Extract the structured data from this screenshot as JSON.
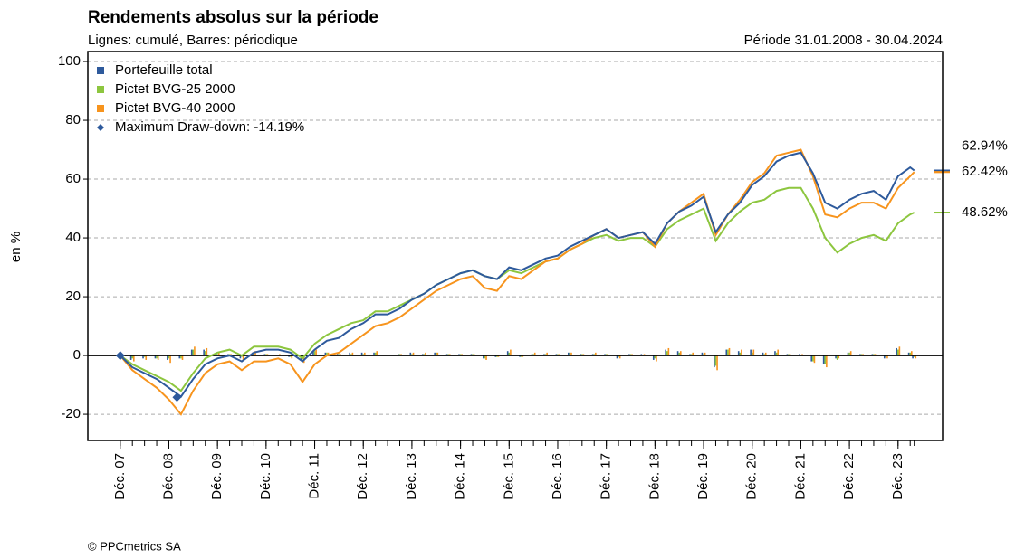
{
  "chart_data": {
    "type": "line",
    "title": "Rendements absolus sur la période",
    "subtitle": "Lignes: cumulé, Barres: périodique",
    "period": "Période 31.01.2008 - 30.04.2024",
    "ylabel": "en %",
    "source": "© PPCmetrics SA",
    "xlim": [
      "2007-04",
      "2024-11"
    ],
    "xticks": [
      {
        "value": "2007-12",
        "label": "Déc. 07"
      },
      {
        "value": "2008-12",
        "label": "Déc. 08"
      },
      {
        "value": "2009-12",
        "label": "Déc. 09"
      },
      {
        "value": "2010-12",
        "label": "Déc. 10"
      },
      {
        "value": "2011-12",
        "label": "Déc. 11"
      },
      {
        "value": "2012-12",
        "label": "Déc. 12"
      },
      {
        "value": "2013-12",
        "label": "Déc. 13"
      },
      {
        "value": "2014-12",
        "label": "Déc. 14"
      },
      {
        "value": "2015-12",
        "label": "Déc. 15"
      },
      {
        "value": "2016-12",
        "label": "Déc. 16"
      },
      {
        "value": "2017-12",
        "label": "Déc. 17"
      },
      {
        "value": "2018-12",
        "label": "Déc. 18"
      },
      {
        "value": "2019-12",
        "label": "Déc. 19"
      },
      {
        "value": "2020-12",
        "label": "Déc. 20"
      },
      {
        "value": "2021-12",
        "label": "Déc. 21"
      },
      {
        "value": "2022-12",
        "label": "Déc. 22"
      },
      {
        "value": "2023-12",
        "label": "Déc. 23"
      }
    ],
    "ylim": [
      -28.9,
      103.4
    ],
    "yticks": [
      -20,
      0,
      20,
      40,
      60,
      80,
      100
    ],
    "grid": true,
    "legend": "upper left",
    "x": [
      "2007-12",
      "2008-03",
      "2008-06",
      "2008-09",
      "2008-12",
      "2009-03",
      "2009-06",
      "2009-09",
      "2009-12",
      "2010-03",
      "2010-06",
      "2010-09",
      "2010-12",
      "2011-03",
      "2011-06",
      "2011-09",
      "2011-12",
      "2012-03",
      "2012-06",
      "2012-09",
      "2012-12",
      "2013-03",
      "2013-06",
      "2013-09",
      "2013-12",
      "2014-03",
      "2014-06",
      "2014-09",
      "2014-12",
      "2015-03",
      "2015-06",
      "2015-09",
      "2015-12",
      "2016-03",
      "2016-06",
      "2016-09",
      "2016-12",
      "2017-03",
      "2017-06",
      "2017-09",
      "2017-12",
      "2018-03",
      "2018-06",
      "2018-09",
      "2018-12",
      "2019-03",
      "2019-06",
      "2019-09",
      "2019-12",
      "2020-03",
      "2020-06",
      "2020-09",
      "2020-12",
      "2021-03",
      "2021-06",
      "2021-09",
      "2021-12",
      "2022-03",
      "2022-06",
      "2022-09",
      "2022-12",
      "2023-03",
      "2023-06",
      "2023-09",
      "2023-12",
      "2024-03",
      "2024-04"
    ],
    "series": [
      {
        "name": "Portefeuille total",
        "color": "#2e5a9c",
        "end_label": "62.94%",
        "values": [
          0,
          -4,
          -6,
          -8,
          -11,
          -14,
          -8,
          -3,
          -1,
          0,
          -2,
          1,
          2,
          2,
          1,
          -2,
          2,
          5,
          6,
          9,
          11,
          14,
          14,
          16,
          19,
          21,
          24,
          26,
          28,
          29,
          27,
          26,
          30,
          29,
          31,
          33,
          34,
          37,
          39,
          41,
          43,
          40,
          41,
          42,
          38,
          45,
          49,
          51,
          54,
          42,
          48,
          52,
          58,
          61,
          66,
          68,
          69,
          62,
          52,
          50,
          53,
          55,
          56,
          53,
          61,
          64,
          62.94
        ],
        "period_values": [
          0,
          -1.5,
          -1,
          -1,
          -1.5,
          -1,
          2,
          2,
          1,
          0.5,
          -1,
          1,
          0.5,
          0,
          -0.5,
          -1.5,
          1.5,
          1,
          0.5,
          1,
          1,
          1,
          0,
          0.5,
          1,
          0.5,
          1,
          0.5,
          0.5,
          0.5,
          -1,
          -0.5,
          1.5,
          -0.5,
          0.5,
          0.5,
          0.5,
          1,
          0.5,
          0.5,
          0.5,
          -1,
          0.5,
          0.5,
          -1.5,
          2,
          1.5,
          0.5,
          1,
          -4,
          2,
          1.5,
          2,
          1,
          1.5,
          0.5,
          0.5,
          -2,
          -3,
          -1,
          1,
          0.5,
          0.5,
          -1,
          2.5,
          1,
          -1
        ]
      },
      {
        "name": "Pictet BVG-25 2000",
        "color": "#8dc63f",
        "end_label": "48.62%",
        "values": [
          0,
          -3,
          -5,
          -7,
          -9,
          -12,
          -6,
          -1,
          1,
          2,
          0,
          3,
          3,
          3,
          2,
          -1,
          4,
          7,
          9,
          11,
          12,
          15,
          15,
          17,
          19,
          21,
          24,
          26,
          28,
          29,
          27,
          26,
          29,
          28,
          30,
          32,
          33,
          36,
          38,
          40,
          41,
          39,
          40,
          40,
          37,
          43,
          46,
          48,
          50,
          39,
          45,
          49,
          52,
          53,
          56,
          57,
          57,
          50,
          40,
          35,
          38,
          40,
          41,
          39,
          45,
          48,
          48.62
        ],
        "period_values": [
          0,
          -1,
          -0.5,
          -1,
          -1,
          -1,
          2,
          1.5,
          0.5,
          0.5,
          -0.5,
          1,
          0.5,
          0,
          -0.5,
          -1,
          1.5,
          1,
          0.5,
          0.5,
          0.5,
          1,
          0,
          0.5,
          0.5,
          0.5,
          1,
          0.5,
          0.5,
          0.5,
          -1,
          -0.5,
          1,
          -0.5,
          0.5,
          0.5,
          0.5,
          1,
          0.5,
          0.5,
          0.5,
          -0.5,
          0.5,
          0,
          -1,
          1.5,
          1,
          0.5,
          0.5,
          -3.5,
          2,
          1,
          1,
          0.5,
          1,
          0.5,
          0,
          -2,
          -3,
          -1.5,
          1,
          0.5,
          0.5,
          -0.5,
          2,
          1,
          -0.5
        ]
      },
      {
        "name": "Pictet BVG-40 2000",
        "color": "#f7941d",
        "end_label": "62.42%",
        "values": [
          0,
          -5,
          -8,
          -11,
          -15,
          -20,
          -12,
          -6,
          -3,
          -2,
          -5,
          -2,
          -2,
          -1,
          -3,
          -9,
          -3,
          0,
          1,
          4,
          7,
          10,
          11,
          13,
          16,
          19,
          22,
          24,
          26,
          27,
          23,
          22,
          27,
          26,
          29,
          32,
          33,
          36,
          38,
          41,
          43,
          40,
          41,
          42,
          37,
          45,
          49,
          52,
          55,
          41,
          48,
          53,
          59,
          62,
          68,
          69,
          70,
          61,
          48,
          47,
          50,
          52,
          52,
          50,
          57,
          61,
          62.42
        ],
        "period_values": [
          0,
          -2,
          -1.5,
          -1.5,
          -2.5,
          -1.5,
          3,
          2.5,
          1,
          0.5,
          -1.5,
          1.5,
          0.5,
          0.5,
          -1,
          -2.5,
          2,
          1,
          0.5,
          1,
          1,
          1.5,
          0,
          0.5,
          1,
          1,
          1,
          0.5,
          0.5,
          0.5,
          -1.5,
          -0.5,
          2,
          -0.5,
          1,
          1,
          0.5,
          1,
          0.5,
          1,
          0.5,
          -1,
          0.5,
          0.5,
          -2,
          2.5,
          1.5,
          1,
          1,
          -5,
          2.5,
          2,
          2,
          1,
          2,
          0.5,
          0.5,
          -2.5,
          -4,
          -1,
          1.5,
          0.5,
          0.5,
          -1,
          3,
          1.5,
          -1
        ]
      }
    ],
    "drawdown": {
      "label": "Maximum Draw-down: -14.19%",
      "color": "#2e5a9c",
      "x": [
        "2007-12",
        "2009-02"
      ],
      "values": [
        0,
        -14.19
      ]
    }
  }
}
